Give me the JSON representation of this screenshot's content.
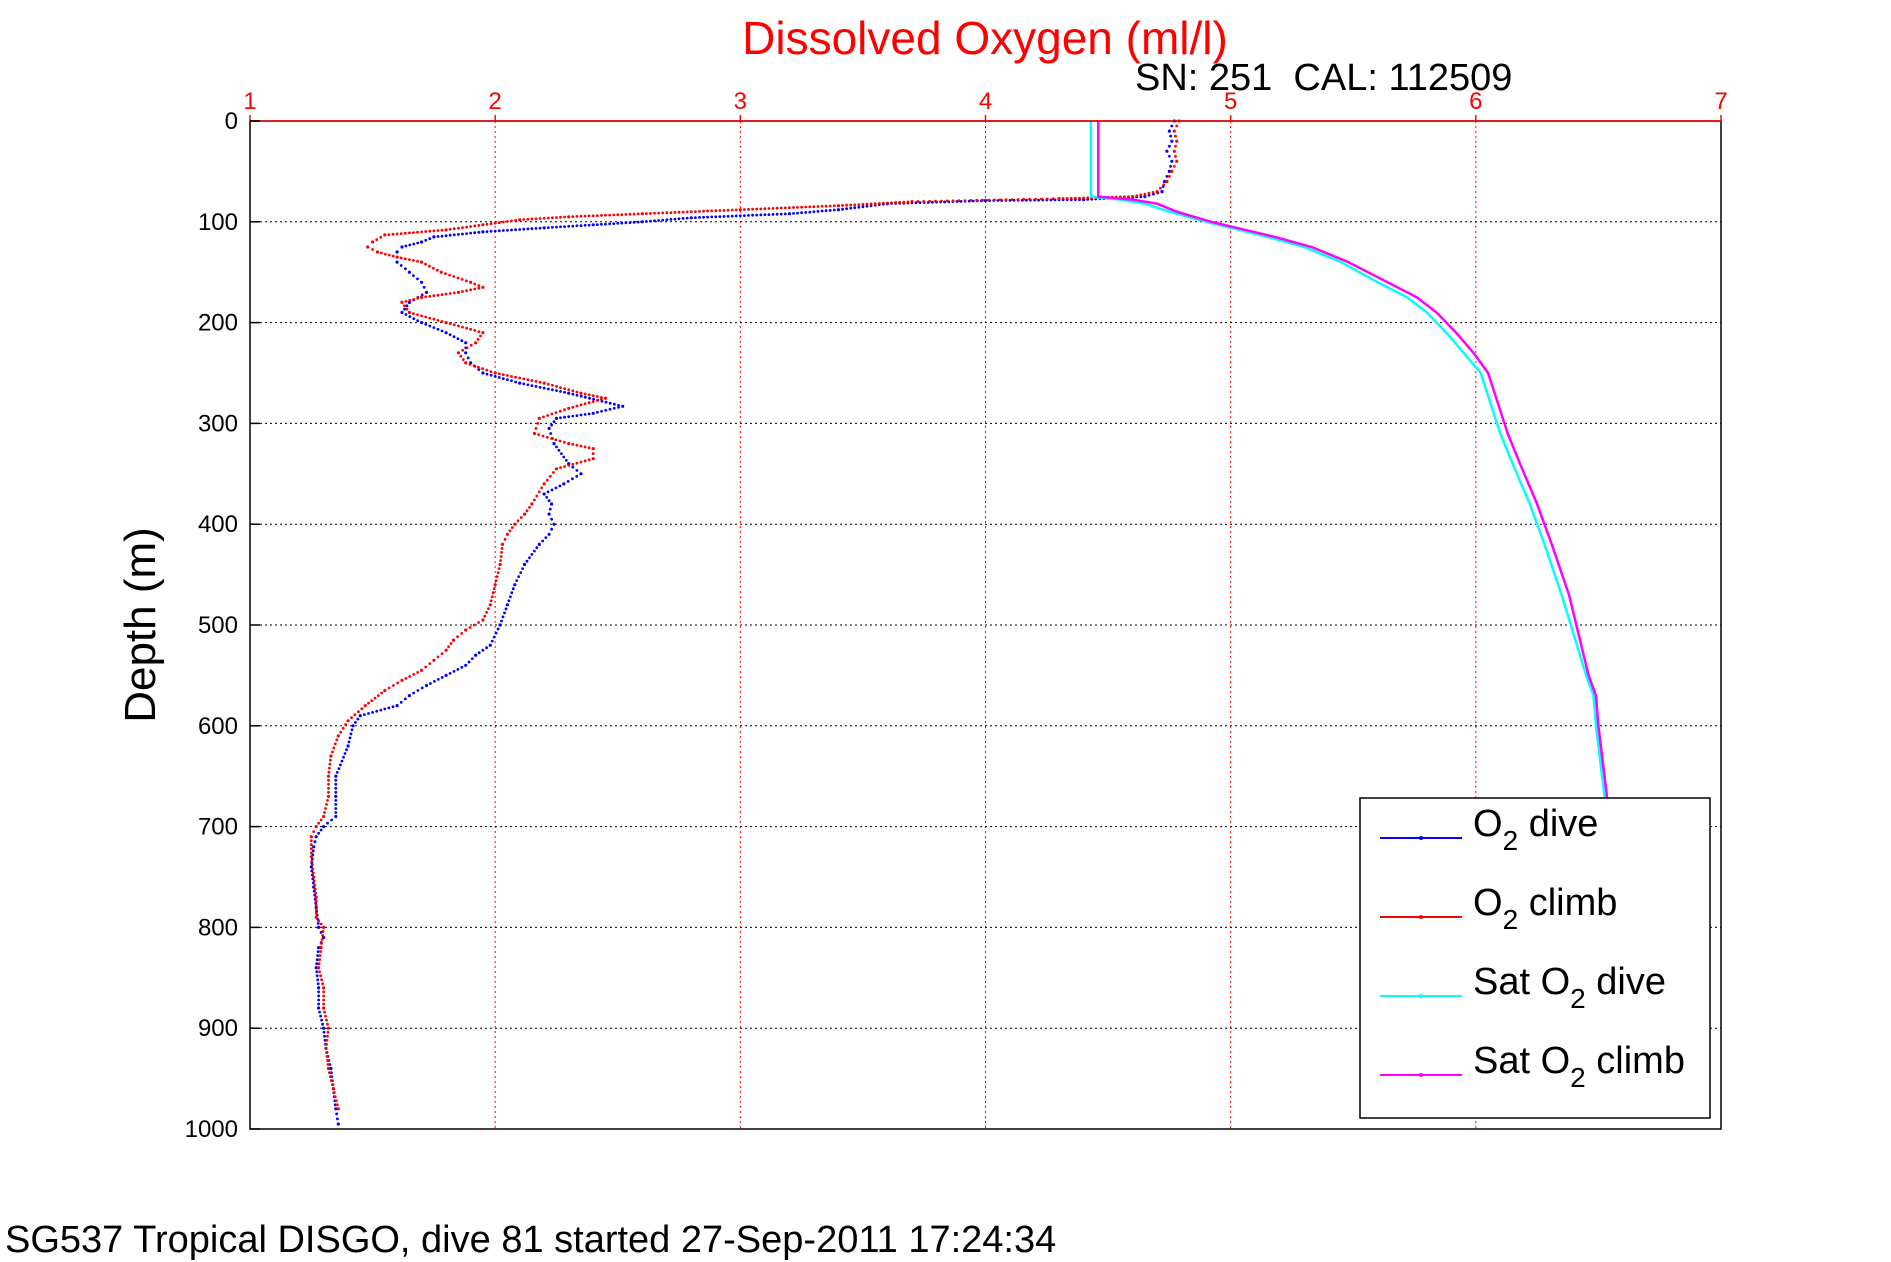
{
  "chart_data": {
    "type": "line",
    "title": "Dissolved Oxygen (ml/l)",
    "subtitle": "SN: 251  CAL: 112509",
    "footer": "SG537 Tropical DISGO, dive 81 started 27-Sep-2011 17:24:34",
    "xlabel": "",
    "ylabel": "Depth (m)",
    "xlim": [
      1,
      7
    ],
    "ylim": [
      0,
      1000
    ],
    "y_reversed": true,
    "x_axis_position": "top",
    "xticks": [
      "1",
      "2",
      "3",
      "4",
      "5",
      "6",
      "7"
    ],
    "yticks": [
      "0",
      "100",
      "200",
      "300",
      "400",
      "500",
      "600",
      "700",
      "800",
      "900",
      "1000"
    ],
    "grid": true,
    "legend_position": "bottom-right",
    "series": [
      {
        "name": "O2 dive",
        "legend_parts": [
          "O",
          "2",
          " dive"
        ],
        "color": "#0000ff",
        "style": "dots",
        "points": [
          [
            4.77,
            0
          ],
          [
            4.75,
            10
          ],
          [
            4.76,
            20
          ],
          [
            4.74,
            30
          ],
          [
            4.76,
            40
          ],
          [
            4.75,
            50
          ],
          [
            4.73,
            60
          ],
          [
            4.72,
            70
          ],
          [
            4.65,
            75
          ],
          [
            4.4,
            78
          ],
          [
            4.0,
            79
          ],
          [
            3.6,
            82
          ],
          [
            3.4,
            88
          ],
          [
            3.2,
            92
          ],
          [
            2.8,
            96
          ],
          [
            2.6,
            100
          ],
          [
            2.4,
            103
          ],
          [
            2.2,
            106
          ],
          [
            1.95,
            110
          ],
          [
            1.75,
            115
          ],
          [
            1.7,
            120
          ],
          [
            1.62,
            125
          ],
          [
            1.6,
            130
          ],
          [
            1.6,
            140
          ],
          [
            1.65,
            150
          ],
          [
            1.7,
            160
          ],
          [
            1.72,
            170
          ],
          [
            1.65,
            180
          ],
          [
            1.62,
            190
          ],
          [
            1.7,
            200
          ],
          [
            1.8,
            210
          ],
          [
            1.88,
            220
          ],
          [
            1.88,
            230
          ],
          [
            1.9,
            240
          ],
          [
            1.95,
            250
          ],
          [
            2.1,
            260
          ],
          [
            2.3,
            270
          ],
          [
            2.52,
            283
          ],
          [
            2.4,
            290
          ],
          [
            2.25,
            295
          ],
          [
            2.22,
            305
          ],
          [
            2.24,
            320
          ],
          [
            2.3,
            340
          ],
          [
            2.35,
            350
          ],
          [
            2.28,
            360
          ],
          [
            2.2,
            370
          ],
          [
            2.23,
            380
          ],
          [
            2.22,
            390
          ],
          [
            2.24,
            400
          ],
          [
            2.22,
            410
          ],
          [
            2.18,
            420
          ],
          [
            2.12,
            440
          ],
          [
            2.08,
            460
          ],
          [
            2.05,
            480
          ],
          [
            2.02,
            500
          ],
          [
            1.98,
            520
          ],
          [
            1.92,
            530
          ],
          [
            1.88,
            540
          ],
          [
            1.8,
            550
          ],
          [
            1.72,
            560
          ],
          [
            1.65,
            570
          ],
          [
            1.6,
            580
          ],
          [
            1.45,
            590
          ],
          [
            1.42,
            600
          ],
          [
            1.4,
            620
          ],
          [
            1.35,
            650
          ],
          [
            1.35,
            670
          ],
          [
            1.35,
            690
          ],
          [
            1.3,
            700
          ],
          [
            1.27,
            710
          ],
          [
            1.26,
            720
          ],
          [
            1.25,
            740
          ],
          [
            1.26,
            760
          ],
          [
            1.27,
            780
          ],
          [
            1.28,
            800
          ],
          [
            1.3,
            810
          ],
          [
            1.28,
            820
          ],
          [
            1.27,
            840
          ],
          [
            1.28,
            860
          ],
          [
            1.28,
            880
          ],
          [
            1.3,
            900
          ],
          [
            1.31,
            920
          ],
          [
            1.33,
            940
          ],
          [
            1.34,
            960
          ],
          [
            1.35,
            980
          ],
          [
            1.36,
            995
          ]
        ]
      },
      {
        "name": "O2 climb",
        "legend_parts": [
          "O",
          "2",
          " climb"
        ],
        "color": "#ff0000",
        "style": "dots",
        "points": [
          [
            4.79,
            0
          ],
          [
            4.77,
            10
          ],
          [
            4.78,
            20
          ],
          [
            4.77,
            30
          ],
          [
            4.78,
            40
          ],
          [
            4.76,
            50
          ],
          [
            4.74,
            60
          ],
          [
            4.7,
            70
          ],
          [
            4.6,
            75
          ],
          [
            4.3,
            77
          ],
          [
            3.7,
            80
          ],
          [
            3.4,
            84
          ],
          [
            3.0,
            88
          ],
          [
            2.6,
            92
          ],
          [
            2.3,
            95
          ],
          [
            2.1,
            98
          ],
          [
            1.95,
            103
          ],
          [
            1.8,
            108
          ],
          [
            1.55,
            113
          ],
          [
            1.5,
            120
          ],
          [
            1.48,
            125
          ],
          [
            1.52,
            130
          ],
          [
            1.6,
            135
          ],
          [
            1.7,
            140
          ],
          [
            1.78,
            150
          ],
          [
            1.9,
            160
          ],
          [
            1.95,
            165
          ],
          [
            1.85,
            170
          ],
          [
            1.7,
            175
          ],
          [
            1.62,
            180
          ],
          [
            1.65,
            190
          ],
          [
            1.8,
            200
          ],
          [
            1.95,
            210
          ],
          [
            1.92,
            220
          ],
          [
            1.85,
            230
          ],
          [
            1.88,
            240
          ],
          [
            2.0,
            250
          ],
          [
            2.2,
            260
          ],
          [
            2.35,
            270
          ],
          [
            2.45,
            275
          ],
          [
            2.3,
            285
          ],
          [
            2.18,
            295
          ],
          [
            2.16,
            310
          ],
          [
            2.3,
            320
          ],
          [
            2.4,
            325
          ],
          [
            2.4,
            335
          ],
          [
            2.25,
            345
          ],
          [
            2.2,
            360
          ],
          [
            2.15,
            380
          ],
          [
            2.12,
            390
          ],
          [
            2.08,
            400
          ],
          [
            2.05,
            410
          ],
          [
            2.03,
            420
          ],
          [
            2.02,
            440
          ],
          [
            2.0,
            460
          ],
          [
            1.98,
            480
          ],
          [
            1.95,
            495
          ],
          [
            1.88,
            505
          ],
          [
            1.83,
            515
          ],
          [
            1.8,
            525
          ],
          [
            1.75,
            535
          ],
          [
            1.7,
            545
          ],
          [
            1.62,
            555
          ],
          [
            1.55,
            565
          ],
          [
            1.47,
            580
          ],
          [
            1.4,
            595
          ],
          [
            1.36,
            610
          ],
          [
            1.33,
            630
          ],
          [
            1.32,
            650
          ],
          [
            1.32,
            670
          ],
          [
            1.3,
            690
          ],
          [
            1.27,
            700
          ],
          [
            1.25,
            710
          ],
          [
            1.25,
            730
          ],
          [
            1.26,
            750
          ],
          [
            1.27,
            770
          ],
          [
            1.27,
            790
          ],
          [
            1.3,
            800
          ],
          [
            1.29,
            820
          ],
          [
            1.28,
            840
          ],
          [
            1.3,
            860
          ],
          [
            1.3,
            880
          ],
          [
            1.32,
            900
          ],
          [
            1.31,
            920
          ],
          [
            1.32,
            940
          ],
          [
            1.34,
            960
          ],
          [
            1.36,
            980
          ]
        ]
      },
      {
        "name": "Sat O2 dive",
        "legend_parts": [
          "Sat O",
          "2",
          " dive"
        ],
        "color": "#00ffff",
        "style": "line",
        "points": [
          [
            4.43,
            0
          ],
          [
            4.43,
            20
          ],
          [
            4.43,
            40
          ],
          [
            4.43,
            60
          ],
          [
            4.43,
            75
          ],
          [
            4.55,
            78
          ],
          [
            4.65,
            82
          ],
          [
            4.75,
            90
          ],
          [
            4.9,
            100
          ],
          [
            5.15,
            115
          ],
          [
            5.3,
            125
          ],
          [
            5.45,
            140
          ],
          [
            5.6,
            160
          ],
          [
            5.72,
            175
          ],
          [
            5.8,
            190
          ],
          [
            5.88,
            210
          ],
          [
            5.95,
            230
          ],
          [
            6.02,
            250
          ],
          [
            6.06,
            280
          ],
          [
            6.1,
            310
          ],
          [
            6.15,
            340
          ],
          [
            6.22,
            380
          ],
          [
            6.28,
            420
          ],
          [
            6.35,
            470
          ],
          [
            6.4,
            510
          ],
          [
            6.45,
            550
          ],
          [
            6.48,
            570
          ],
          [
            6.49,
            600
          ],
          [
            6.51,
            640
          ],
          [
            6.53,
            680
          ]
        ]
      },
      {
        "name": "Sat O2 climb",
        "legend_parts": [
          "Sat O",
          "2",
          " climb"
        ],
        "color": "#ff00ff",
        "style": "line",
        "points": [
          [
            4.46,
            0
          ],
          [
            4.46,
            20
          ],
          [
            4.46,
            40
          ],
          [
            4.46,
            60
          ],
          [
            4.46,
            75
          ],
          [
            4.6,
            78
          ],
          [
            4.7,
            82
          ],
          [
            4.78,
            90
          ],
          [
            4.92,
            100
          ],
          [
            5.18,
            115
          ],
          [
            5.33,
            125
          ],
          [
            5.48,
            140
          ],
          [
            5.64,
            160
          ],
          [
            5.76,
            175
          ],
          [
            5.84,
            190
          ],
          [
            5.92,
            210
          ],
          [
            5.99,
            230
          ],
          [
            6.05,
            250
          ],
          [
            6.09,
            280
          ],
          [
            6.13,
            310
          ],
          [
            6.18,
            340
          ],
          [
            6.25,
            380
          ],
          [
            6.31,
            420
          ],
          [
            6.38,
            470
          ],
          [
            6.42,
            510
          ],
          [
            6.46,
            550
          ],
          [
            6.49,
            570
          ],
          [
            6.5,
            600
          ],
          [
            6.52,
            640
          ],
          [
            6.54,
            680
          ]
        ]
      }
    ]
  }
}
